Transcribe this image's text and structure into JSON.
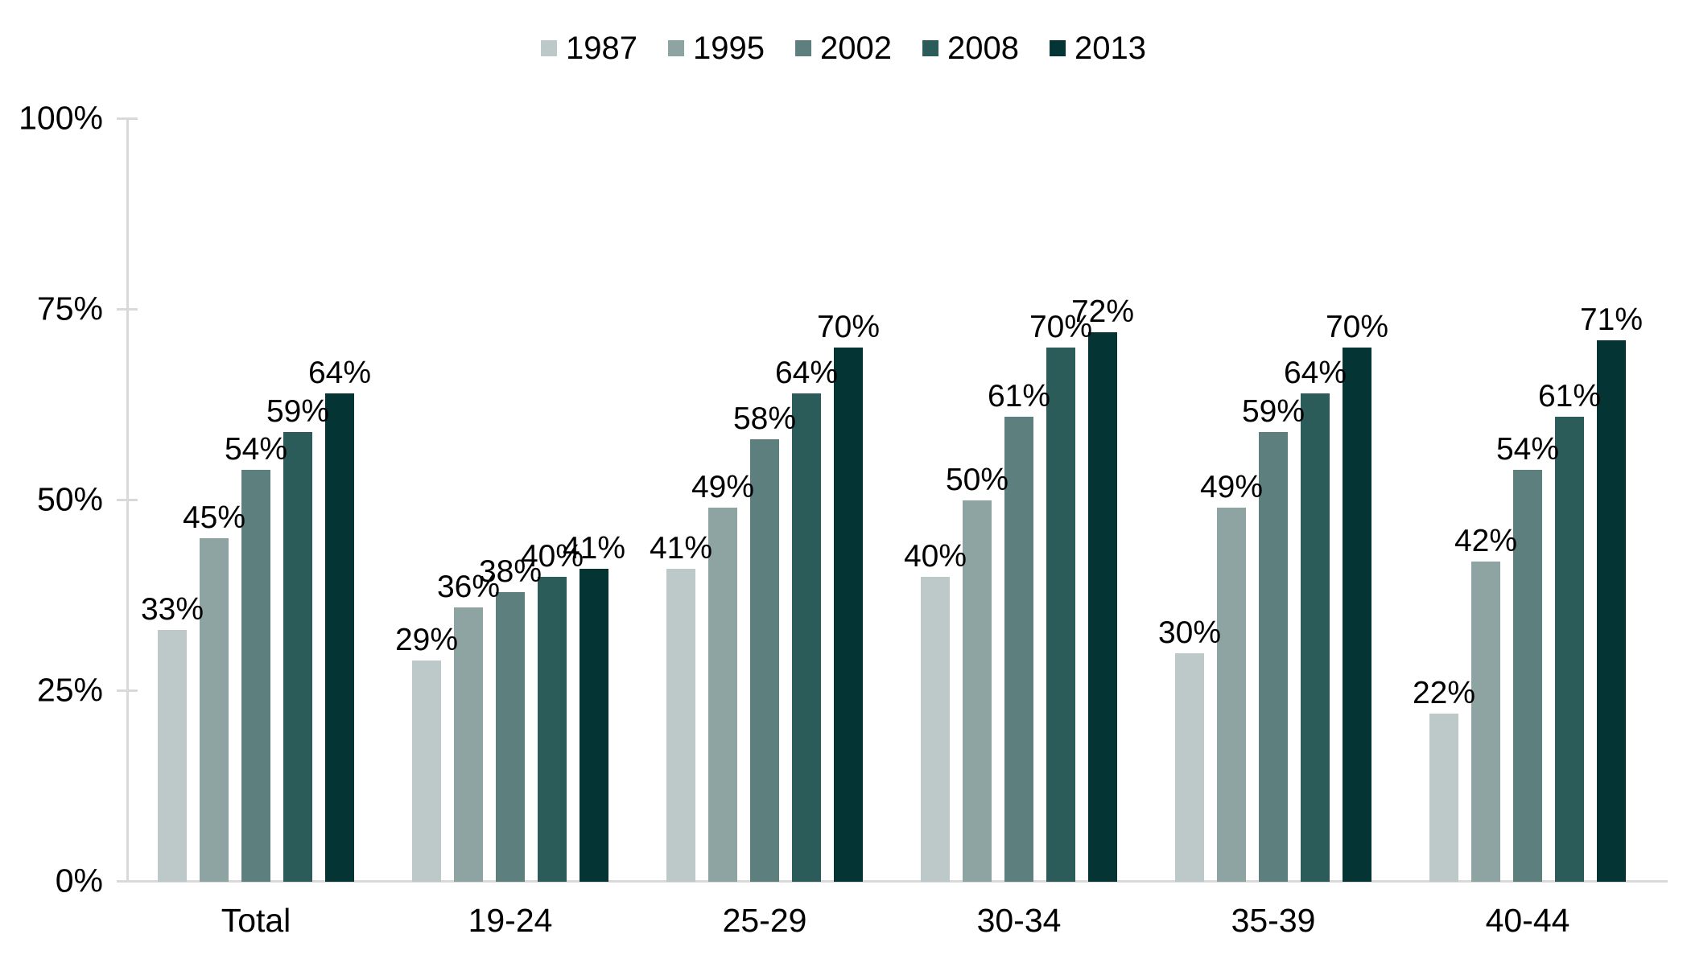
{
  "chart_data": {
    "type": "bar",
    "title": "",
    "xlabel": "",
    "ylabel": "",
    "categories": [
      "Total",
      "19-24",
      "25-29",
      "30-34",
      "35-39",
      "40-44"
    ],
    "series": [
      {
        "name": "1987",
        "color": "#bdc9c8",
        "values": [
          33,
          29,
          41,
          40,
          30,
          22
        ]
      },
      {
        "name": "1995",
        "color": "#8da4a3",
        "values": [
          45,
          36,
          49,
          50,
          49,
          42
        ]
      },
      {
        "name": "2002",
        "color": "#5d807f",
        "values": [
          54,
          38,
          58,
          61,
          59,
          54
        ]
      },
      {
        "name": "2008",
        "color": "#2b5c59",
        "values": [
          59,
          40,
          64,
          70,
          64,
          61
        ]
      },
      {
        "name": "2013",
        "color": "#053434",
        "values": [
          64,
          41,
          70,
          72,
          70,
          71
        ]
      }
    ],
    "data_label_suffix": "%",
    "ylim": [
      0,
      100
    ],
    "yticks": [
      0,
      25,
      50,
      75,
      100
    ],
    "ytick_labels": [
      "0%",
      "25%",
      "50%",
      "75%",
      "100%"
    ],
    "grid": false,
    "data_labels": true,
    "legend_position": "top-center",
    "colors": {
      "axis_line": "#d9d9d9",
      "text": "#000000",
      "background": "#ffffff"
    }
  }
}
